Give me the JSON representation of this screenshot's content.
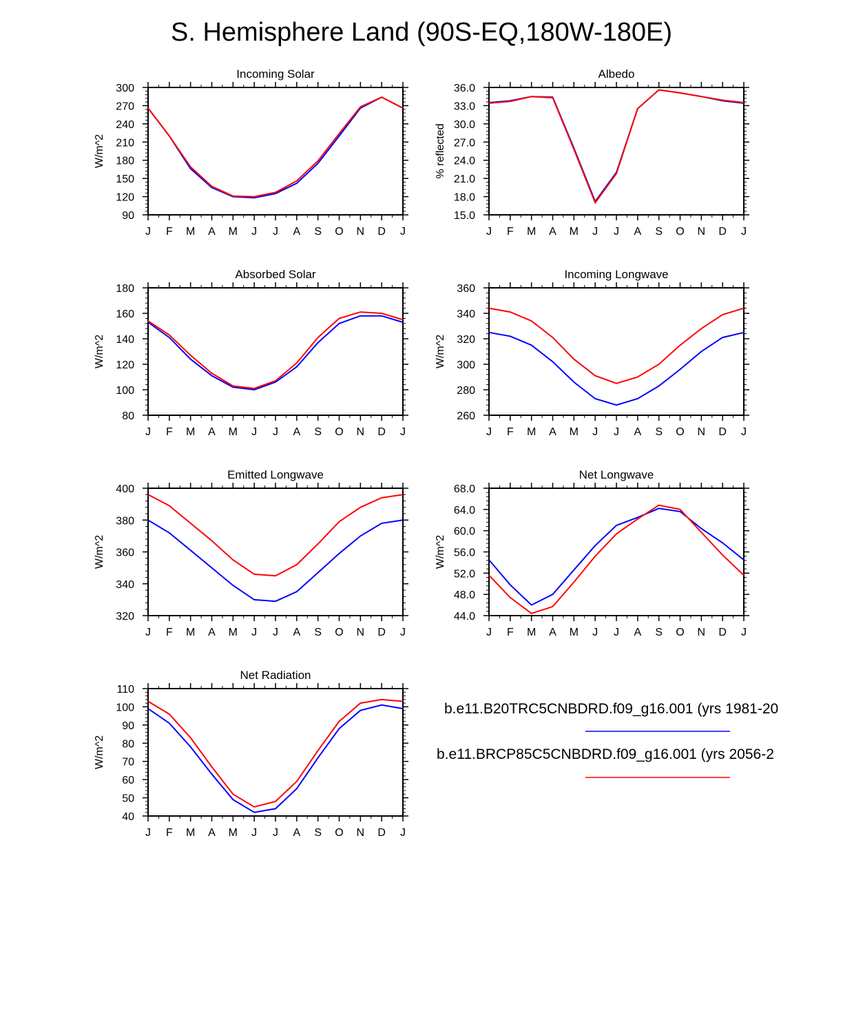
{
  "title": "S. Hemisphere Land (90S-EQ,180W-180E)",
  "months": [
    "J",
    "F",
    "M",
    "A",
    "M",
    "J",
    "J",
    "A",
    "S",
    "O",
    "N",
    "D",
    "J"
  ],
  "legend": [
    {
      "label": "b.e11.B20TRC5CNBDRD.f09_g16.001 (yrs 1981-20",
      "color": "#0000ff"
    },
    {
      "label": "b.e11.BRCP85C5CNBDRD.f09_g16.001 (yrs 2056-2",
      "color": "#ff0000"
    }
  ],
  "colors": {
    "series1": "#0000ff",
    "series2": "#ff0000",
    "axis": "#000000"
  },
  "chart_data": [
    {
      "type": "line",
      "title": "Incoming Solar",
      "ylabel": "W/m^2",
      "ylim": [
        90,
        300
      ],
      "yticks": [
        "90",
        "120",
        "150",
        "180",
        "210",
        "240",
        "270",
        "300"
      ],
      "categories": [
        "J",
        "F",
        "M",
        "A",
        "M",
        "J",
        "J",
        "A",
        "S",
        "O",
        "N",
        "D",
        "J"
      ],
      "series": [
        {
          "name": "series1",
          "values": [
            266,
            220,
            166,
            135,
            120,
            118,
            125,
            142,
            175,
            220,
            266,
            284,
            266
          ]
        },
        {
          "name": "series2",
          "values": [
            266,
            220,
            169,
            137,
            121,
            120,
            127,
            146,
            179,
            224,
            268,
            284,
            266
          ]
        }
      ]
    },
    {
      "type": "line",
      "title": "Albedo",
      "ylabel": "% reflected",
      "ylim": [
        15.0,
        36.0
      ],
      "yticks": [
        "15.0",
        "18.0",
        "21.0",
        "24.0",
        "27.0",
        "30.0",
        "33.0",
        "36.0"
      ],
      "categories": [
        "J",
        "F",
        "M",
        "A",
        "M",
        "J",
        "J",
        "A",
        "S",
        "O",
        "N",
        "D",
        "J"
      ],
      "series": [
        {
          "name": "series1",
          "values": [
            33.5,
            33.8,
            34.5,
            34.4,
            26.0,
            17.2,
            22.0,
            32.5,
            35.6,
            35.1,
            34.5,
            33.8,
            33.4
          ]
        },
        {
          "name": "series2",
          "values": [
            33.4,
            33.7,
            34.5,
            34.3,
            25.8,
            17.0,
            21.8,
            32.5,
            35.6,
            35.1,
            34.5,
            33.9,
            33.5
          ]
        }
      ]
    },
    {
      "type": "line",
      "title": "Absorbed Solar",
      "ylabel": "W/m^2",
      "ylim": [
        80,
        180
      ],
      "yticks": [
        "80",
        "100",
        "120",
        "140",
        "160",
        "180"
      ],
      "categories": [
        "J",
        "F",
        "M",
        "A",
        "M",
        "J",
        "J",
        "A",
        "S",
        "O",
        "N",
        "D",
        "J"
      ],
      "series": [
        {
          "name": "series1",
          "values": [
            153,
            141,
            124,
            111,
            102,
            100,
            106,
            118,
            137,
            152,
            158,
            158,
            153
          ]
        },
        {
          "name": "series2",
          "values": [
            154,
            143,
            127,
            113,
            103,
            101,
            107,
            121,
            141,
            156,
            161,
            160,
            155
          ]
        }
      ]
    },
    {
      "type": "line",
      "title": "Incoming Longwave",
      "ylabel": "W/m^2",
      "ylim": [
        260,
        360
      ],
      "yticks": [
        "260",
        "280",
        "300",
        "320",
        "340",
        "360"
      ],
      "categories": [
        "J",
        "F",
        "M",
        "A",
        "M",
        "J",
        "J",
        "A",
        "S",
        "O",
        "N",
        "D",
        "J"
      ],
      "series": [
        {
          "name": "series1",
          "values": [
            325,
            322,
            315,
            302,
            286,
            273,
            268,
            273,
            283,
            296,
            310,
            321,
            325
          ]
        },
        {
          "name": "series2",
          "values": [
            344,
            341,
            334,
            321,
            304,
            291,
            285,
            290,
            300,
            315,
            328,
            339,
            344
          ]
        }
      ]
    },
    {
      "type": "line",
      "title": "Emitted Longwave",
      "ylabel": "W/m^2",
      "ylim": [
        320,
        400
      ],
      "yticks": [
        "320",
        "340",
        "360",
        "380",
        "400"
      ],
      "categories": [
        "J",
        "F",
        "M",
        "A",
        "M",
        "J",
        "J",
        "A",
        "S",
        "O",
        "N",
        "D",
        "J"
      ],
      "series": [
        {
          "name": "series1",
          "values": [
            380,
            372,
            361,
            350,
            339,
            330,
            329,
            335,
            347,
            359,
            370,
            378,
            380
          ]
        },
        {
          "name": "series2",
          "values": [
            396,
            389,
            378,
            367,
            355,
            346,
            345,
            352,
            365,
            379,
            388,
            394,
            396
          ]
        }
      ]
    },
    {
      "type": "line",
      "title": "Net Longwave",
      "ylabel": "W/m^2",
      "ylim": [
        44.0,
        68.0
      ],
      "yticks": [
        "44.0",
        "48.0",
        "52.0",
        "56.0",
        "60.0",
        "64.0",
        "68.0"
      ],
      "categories": [
        "J",
        "F",
        "M",
        "A",
        "M",
        "J",
        "J",
        "A",
        "S",
        "O",
        "N",
        "D",
        "J"
      ],
      "series": [
        {
          "name": "series1",
          "values": [
            54.5,
            49.8,
            46.0,
            48.0,
            52.6,
            57.2,
            61.0,
            62.5,
            64.2,
            63.6,
            60.4,
            57.7,
            54.5
          ]
        },
        {
          "name": "series2",
          "values": [
            51.6,
            47.4,
            44.4,
            45.7,
            50.3,
            55.2,
            59.4,
            62.2,
            64.8,
            64.0,
            59.7,
            55.4,
            51.6
          ]
        }
      ]
    },
    {
      "type": "line",
      "title": "Net Radiation",
      "ylabel": "W/m^2",
      "ylim": [
        40,
        110
      ],
      "yticks": [
        "40",
        "50",
        "60",
        "70",
        "80",
        "90",
        "100",
        "110"
      ],
      "categories": [
        "J",
        "F",
        "M",
        "A",
        "M",
        "J",
        "J",
        "A",
        "S",
        "O",
        "N",
        "D",
        "J"
      ],
      "series": [
        {
          "name": "series1",
          "values": [
            99,
            91,
            78,
            63,
            49,
            42,
            44,
            55,
            72,
            88,
            98,
            101,
            99
          ]
        },
        {
          "name": "series2",
          "values": [
            103,
            96,
            83,
            67,
            52,
            45,
            48,
            59,
            76,
            92,
            102,
            104,
            103
          ]
        }
      ]
    }
  ]
}
